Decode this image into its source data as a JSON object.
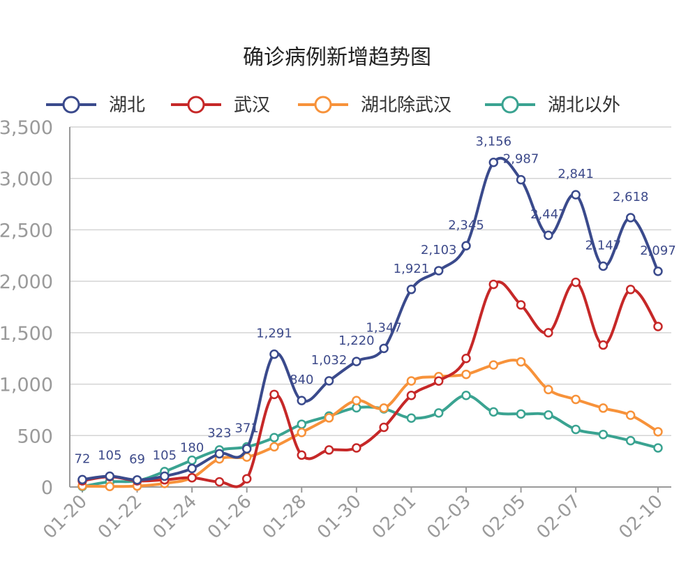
{
  "chart_data": {
    "type": "line",
    "title": "确诊病例新增趋势图",
    "xlabel": "",
    "ylabel": "",
    "ylim": [
      0,
      3500
    ],
    "yticks": [
      "0",
      "500",
      "1,000",
      "1,500",
      "2,000",
      "2,500",
      "3,000",
      "3,500"
    ],
    "x": [
      "01-20",
      "01-21",
      "01-22",
      "01-23",
      "01-24",
      "01-25",
      "01-26",
      "01-27",
      "01-28",
      "01-29",
      "01-30",
      "01-31",
      "02-01",
      "02-02",
      "02-03",
      "02-04",
      "02-05",
      "02-06",
      "02-07",
      "02-08",
      "02-09",
      "02-10"
    ],
    "x_tick_labels": [
      "01-20",
      "01-22",
      "01-24",
      "01-26",
      "01-28",
      "01-30",
      "02-01",
      "02-03",
      "02-05",
      "02-07",
      "02-10"
    ],
    "grid": true,
    "legend_position": "top",
    "series": [
      {
        "name": "湖北",
        "color": "#3a4a8c",
        "values": [
          72,
          105,
          69,
          105,
          180,
          323,
          371,
          1291,
          840,
          1032,
          1220,
          1347,
          1921,
          2103,
          2345,
          3156,
          2987,
          2447,
          2841,
          2147,
          2618,
          2097
        ],
        "data_labels": [
          "72",
          "105",
          "69",
          "105",
          "180",
          "323",
          "371",
          "1,291",
          "840",
          "1,032",
          "1,220",
          "1,347",
          "1,921",
          "2,103",
          "2,345",
          "3,156",
          "2,987",
          "2,447",
          "2,841",
          "2,147",
          "2,618",
          "2,097"
        ]
      },
      {
        "name": "武汉",
        "color": "#c62828",
        "values": [
          60,
          100,
          60,
          70,
          90,
          50,
          80,
          900,
          310,
          360,
          380,
          580,
          890,
          1030,
          1250,
          1970,
          1770,
          1500,
          1990,
          1380,
          1920,
          1560
        ]
      },
      {
        "name": "湖北除武汉",
        "color": "#f7923a",
        "values": [
          10,
          5,
          9,
          35,
          90,
          273,
          291,
          391,
          530,
          672,
          840,
          767,
          1031,
          1073,
          1095,
          1186,
          1217,
          947,
          851,
          767,
          698,
          537
        ]
      },
      {
        "name": "湖北以外",
        "color": "#3aa391",
        "values": [
          5,
          50,
          60,
          150,
          260,
          360,
          390,
          480,
          610,
          690,
          770,
          760,
          670,
          720,
          890,
          730,
          710,
          700,
          560,
          510,
          450,
          380
        ]
      }
    ]
  }
}
